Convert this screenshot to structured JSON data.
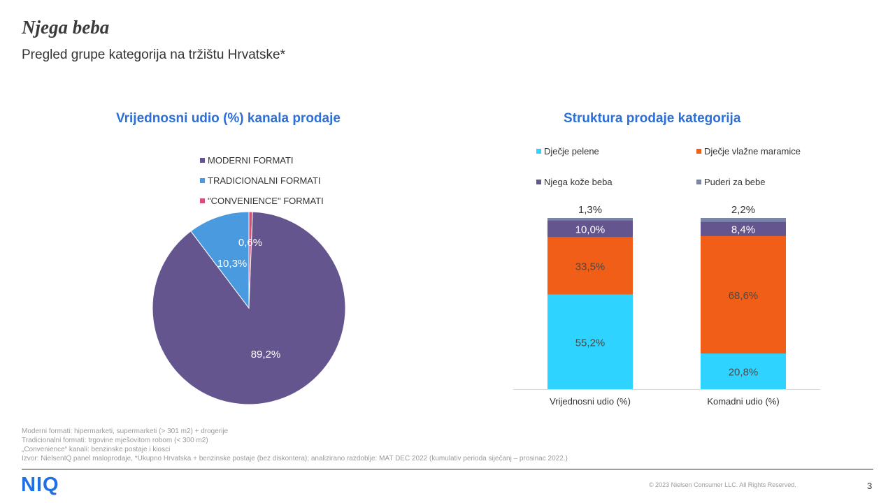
{
  "header": {
    "title": "Njega beba",
    "subtitle": "Pregled grupe kategorija na tržištu Hrvatske*"
  },
  "chart_data": [
    {
      "type": "pie",
      "title": "Vrijednosni udio (%) kanala prodaje",
      "legend_position": "top-right",
      "slices": [
        {
          "name": "MODERNI FORMATI",
          "value": 89.2,
          "label": "89,2%",
          "color": "#65558f"
        },
        {
          "name": "TRADICIONALNI FORMATI",
          "value": 10.3,
          "label": "10,3%",
          "color": "#4a9ae0"
        },
        {
          "name": "\"CONVENIENCE\" FORMATI",
          "value": 0.6,
          "label": "0,6%",
          "color": "#d64f7a"
        }
      ]
    },
    {
      "type": "bar",
      "stacked": true,
      "title": "Struktura prodaje kategorija",
      "legend_position": "top",
      "categories": [
        "Vrijednosni udio (%)",
        "Komadni udio (%)"
      ],
      "ylim": [
        0,
        100
      ],
      "grid": false,
      "series": [
        {
          "name": "Dječje pelene",
          "values": [
            55.2,
            20.8
          ],
          "labels": [
            "55,2%",
            "20,8%"
          ],
          "color": "#2ed3ff"
        },
        {
          "name": "Dječje vlažne maramice",
          "values": [
            33.5,
            68.6
          ],
          "labels": [
            "33,5%",
            "68,6%"
          ],
          "color": "#f05e17"
        },
        {
          "name": "Njega kože beba",
          "values": [
            10.0,
            8.4
          ],
          "labels": [
            "10,0%",
            "8,4%"
          ],
          "color": "#65558f"
        },
        {
          "name": "Puderi za bebe",
          "values": [
            1.3,
            2.2
          ],
          "labels": [
            "1,3%",
            "2,2%"
          ],
          "color": "#7a85a8"
        }
      ]
    }
  ],
  "footnotes": [
    "Moderni formati: hipermarketi, supermarketi (> 301 m2) + drogerije",
    "Tradicionalni formati: trgovine mješovitom robom (< 300 m2)",
    "„Convenience“ kanali: benzinske postaje i kiosci",
    "Izvor: NielsenIQ panel maloprodaje, *Ukupno Hrvatska + benzinske postaje (bez diskontera); analizirano razdoblje: MAT DEC 2022 (kumulativ perioda siječanj – prosinac 2022.)"
  ],
  "footer": {
    "logo": "NIQ",
    "copyright": "© 2023 Nielsen Consumer LLC. All Rights Reserved.",
    "page_number": "3"
  }
}
